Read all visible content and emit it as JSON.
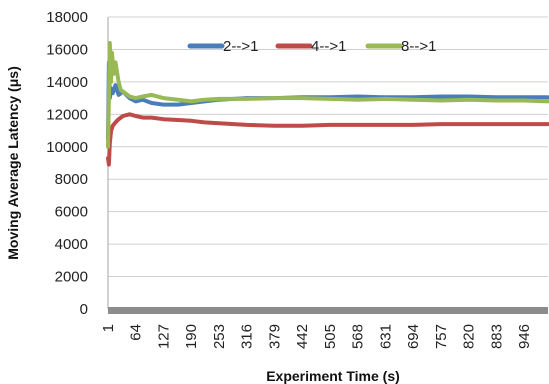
{
  "chart_data": {
    "type": "line",
    "xlabel": "Experiment Time (s)",
    "ylabel": "Moving Average Latency (μs)",
    "ylim": [
      0,
      18000
    ],
    "xlim": [
      1,
      1000
    ],
    "y_ticks": [
      "0",
      "2000",
      "4000",
      "6000",
      "8000",
      "10000",
      "12000",
      "14000",
      "16000",
      "18000"
    ],
    "x_ticks": [
      "1",
      "64",
      "127",
      "190",
      "253",
      "316",
      "379",
      "442",
      "505",
      "568",
      "631",
      "694",
      "757",
      "820",
      "883",
      "946"
    ],
    "grid": "horizontal",
    "legend_position": "top",
    "series": [
      {
        "name": "2-->1",
        "color": "#4a7ebb",
        "x": [
          1,
          3,
          5,
          8,
          12,
          18,
          25,
          35,
          50,
          64,
          80,
          100,
          127,
          160,
          190,
          220,
          253,
          316,
          379,
          442,
          505,
          568,
          631,
          694,
          757,
          820,
          883,
          946,
          1000
        ],
        "y": [
          10500,
          15200,
          13000,
          13600,
          13300,
          13800,
          13200,
          13400,
          13000,
          12800,
          12900,
          12700,
          12600,
          12600,
          12700,
          12800,
          12900,
          13000,
          13000,
          13050,
          13050,
          13100,
          13050,
          13050,
          13100,
          13100,
          13050,
          13050,
          13050
        ]
      },
      {
        "name": "4-->1",
        "color": "#be4b48",
        "x": [
          1,
          3,
          5,
          8,
          12,
          18,
          25,
          35,
          50,
          64,
          80,
          100,
          127,
          160,
          190,
          220,
          253,
          316,
          379,
          442,
          505,
          568,
          631,
          694,
          757,
          820,
          883,
          946,
          1000
        ],
        "y": [
          9300,
          8900,
          10200,
          11000,
          11300,
          11500,
          11700,
          11900,
          12000,
          11900,
          11800,
          11800,
          11700,
          11650,
          11600,
          11500,
          11450,
          11350,
          11300,
          11300,
          11350,
          11350,
          11350,
          11350,
          11400,
          11400,
          11400,
          11400,
          11400
        ]
      },
      {
        "name": "8-->1",
        "color": "#98b954",
        "x": [
          1,
          3,
          5,
          8,
          10,
          14,
          18,
          25,
          30,
          40,
          50,
          64,
          80,
          100,
          127,
          160,
          190,
          220,
          253,
          316,
          379,
          442,
          505,
          568,
          631,
          694,
          757,
          820,
          883,
          946,
          1000
        ],
        "y": [
          10000,
          13000,
          16400,
          14000,
          15800,
          14500,
          15200,
          14000,
          13500,
          13300,
          13100,
          13000,
          13100,
          13200,
          13000,
          12900,
          12800,
          12900,
          12950,
          12950,
          13000,
          13000,
          12950,
          12900,
          12950,
          12900,
          12850,
          12900,
          12850,
          12850,
          12800
        ]
      }
    ]
  }
}
